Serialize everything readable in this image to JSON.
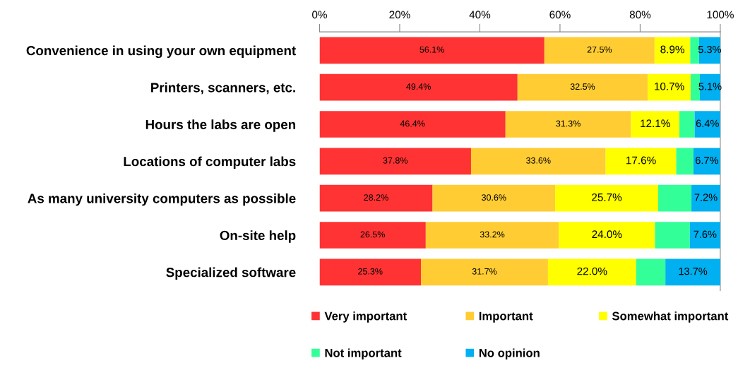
{
  "chart_data": {
    "type": "bar",
    "orientation": "horizontal",
    "stacked": true,
    "categories": [
      "Convenience in using your own equipment",
      "Printers, scanners, etc.",
      "Hours the labs are open",
      "Locations of computer labs",
      "As many university computers as possible",
      "On-site help",
      "Specialized software"
    ],
    "series": [
      {
        "name": "Very important",
        "color": "#ff3333",
        "values": [
          56.1,
          49.4,
          46.4,
          37.8,
          28.2,
          26.5,
          25.3
        ],
        "value_labels": [
          "56.1%",
          "49.4%",
          "46.4%",
          "37.8%",
          "28.2%",
          "26.5%",
          "25.3%"
        ]
      },
      {
        "name": "Important",
        "color": "#ffcc33",
        "values": [
          27.5,
          32.5,
          31.3,
          33.6,
          30.6,
          33.2,
          31.7
        ],
        "value_labels": [
          "27.5%",
          "32.5%",
          "31.3%",
          "33.6%",
          "30.6%",
          "33.2%",
          "31.7%"
        ]
      },
      {
        "name": "Somewhat important",
        "color": "#ffff00",
        "values": [
          8.9,
          10.7,
          12.1,
          17.6,
          25.7,
          24.0,
          22.0
        ],
        "value_labels": [
          "8.9%",
          "10.7%",
          "12.1%",
          "17.6%",
          "25.7%",
          "24.0%",
          "22.0%"
        ]
      },
      {
        "name": "Not important",
        "color": "#33ff99",
        "values": [
          2.2,
          2.3,
          3.8,
          4.3,
          8.3,
          8.7,
          7.3
        ]
      },
      {
        "name": "No opinion",
        "color": "#00b0f0",
        "values": [
          5.3,
          5.1,
          6.4,
          6.7,
          7.2,
          7.6,
          13.7
        ],
        "value_labels": [
          "5.3%",
          "5.1%",
          "6.4%",
          "6.7%",
          "7.2%",
          "7.6%",
          "13.7%"
        ]
      }
    ],
    "xlim": [
      0,
      100
    ],
    "xticks": [
      {
        "value": 0,
        "label": "0%"
      },
      {
        "value": 20,
        "label": "20%"
      },
      {
        "value": 40,
        "label": "40%"
      },
      {
        "value": 60,
        "label": "60%"
      },
      {
        "value": 80,
        "label": "80%"
      },
      {
        "value": 100,
        "label": "100%"
      }
    ],
    "grid": false,
    "legend": "bottom"
  }
}
